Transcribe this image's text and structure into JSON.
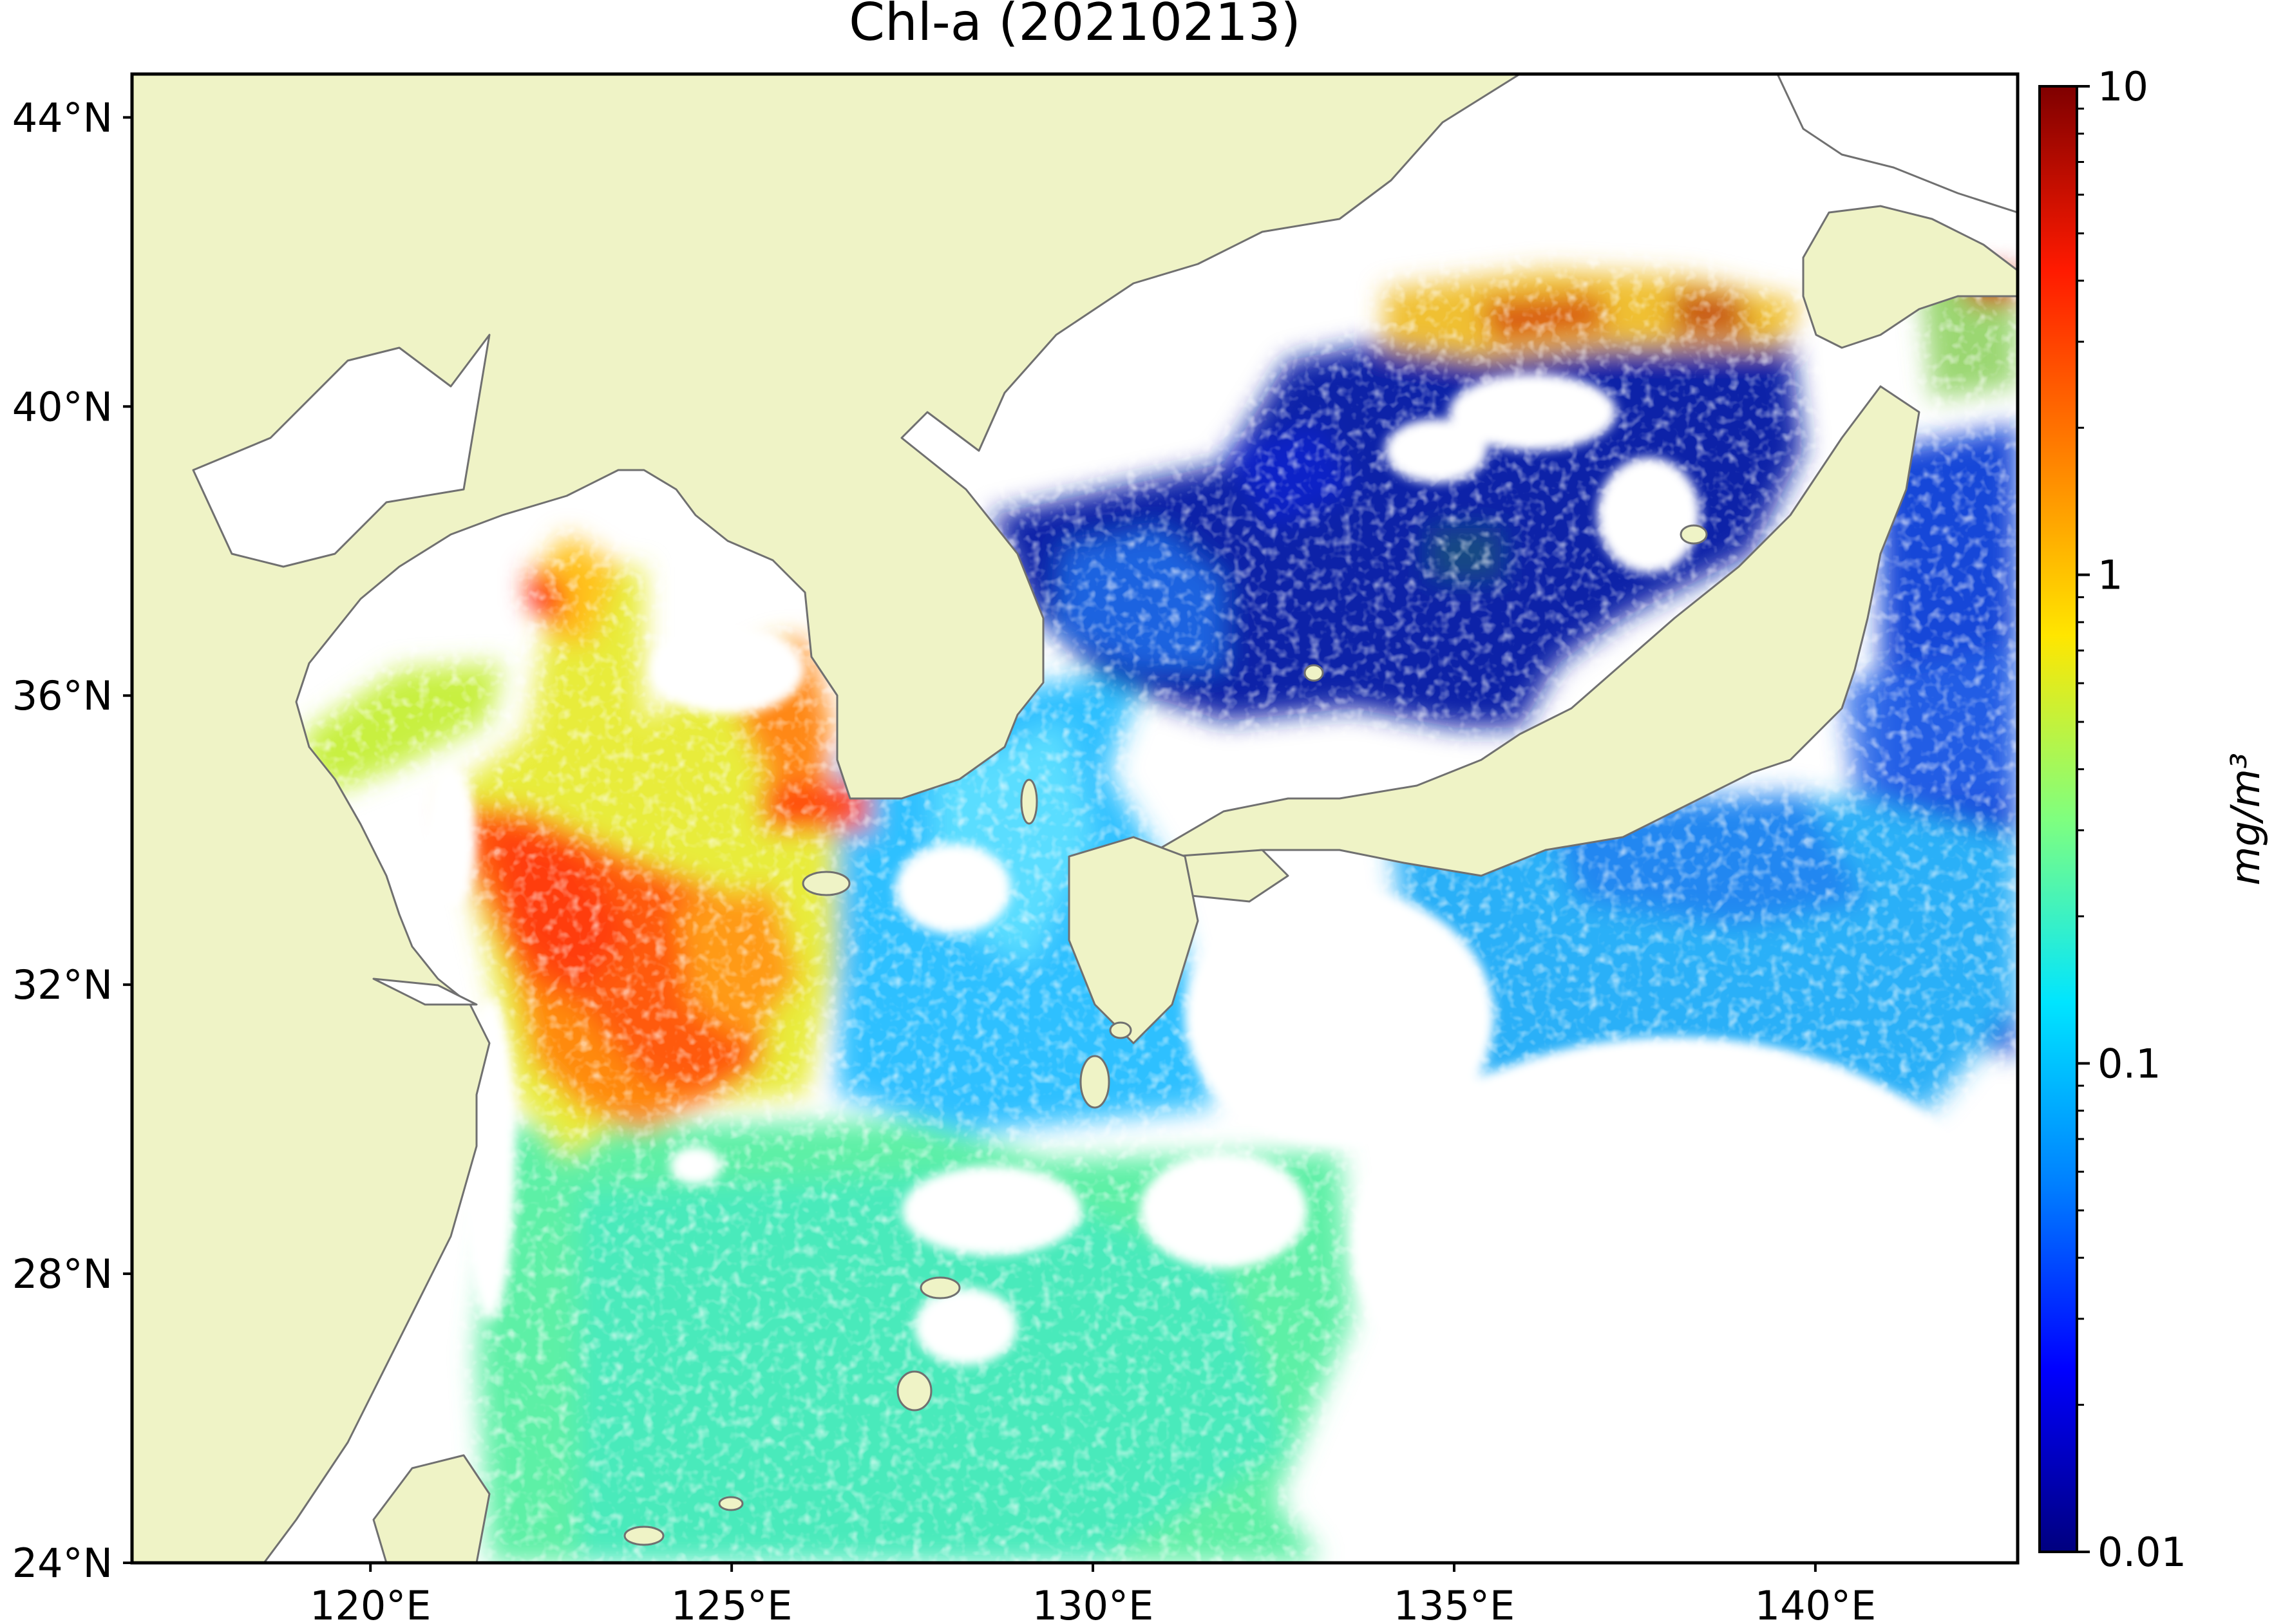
{
  "title": "Chl-a (20210213)",
  "colors": {
    "land": "#eff3c6",
    "coastline": "#707070",
    "no_data": "#ffffff",
    "frame": "#000000"
  },
  "map": {
    "lon_range": [
      116.7,
      142.8
    ],
    "lat_range": [
      24.0,
      44.6
    ],
    "lat_ticks": [
      {
        "value": 24,
        "label": "24°N"
      },
      {
        "value": 28,
        "label": "28°N"
      },
      {
        "value": 32,
        "label": "32°N"
      },
      {
        "value": 36,
        "label": "36°N"
      },
      {
        "value": 40,
        "label": "40°N"
      },
      {
        "value": 44,
        "label": "44°N"
      }
    ],
    "lon_ticks": [
      {
        "value": 120,
        "label": "120°E"
      },
      {
        "value": 125,
        "label": "125°E"
      },
      {
        "value": 130,
        "label": "130°E"
      },
      {
        "value": 135,
        "label": "135°E"
      },
      {
        "value": 140,
        "label": "140°E"
      }
    ]
  },
  "colorbar": {
    "label": "mg/m³",
    "scale": "log",
    "range": [
      0.01,
      10
    ],
    "ticks": [
      {
        "value": 10,
        "label": "10"
      },
      {
        "value": 1,
        "label": "1"
      },
      {
        "value": 0.1,
        "label": "0.1"
      },
      {
        "value": 0.01,
        "label": "0.01"
      }
    ],
    "colormap": [
      "#00007f",
      "#0000ff",
      "#007fff",
      "#00e5ff",
      "#7fff7f",
      "#ffe600",
      "#ff7f00",
      "#ff1a00",
      "#7f0000"
    ]
  }
}
